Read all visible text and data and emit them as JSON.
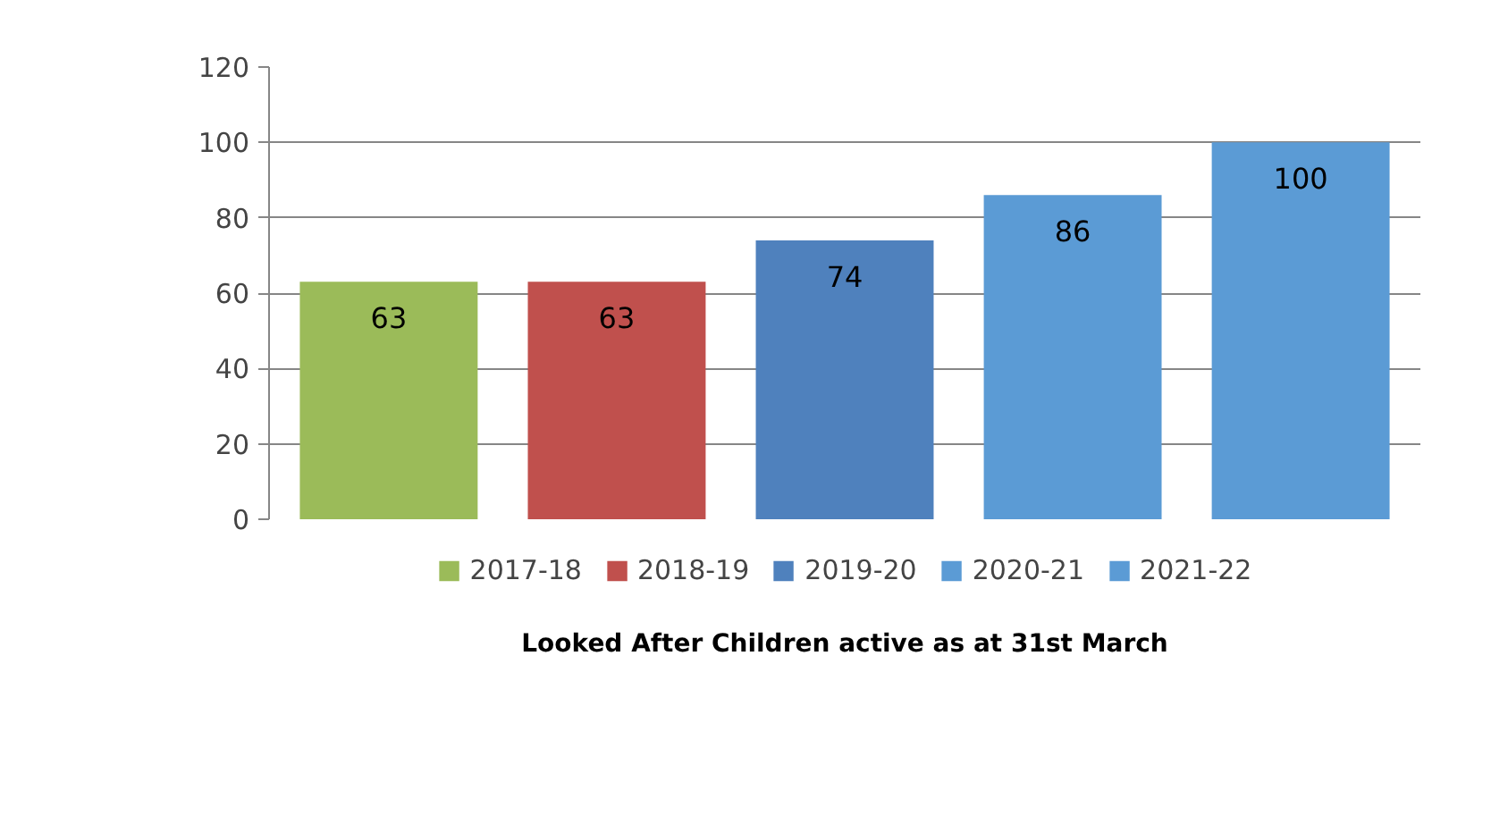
{
  "chart_data": {
    "type": "bar",
    "xlabel": "Looked After Children active as at 31st March",
    "categories": [
      null
    ],
    "series": [
      {
        "name": "2017-18",
        "color": "#9bbb59",
        "values": [
          63
        ]
      },
      {
        "name": "2018-19",
        "color": "#c0504d",
        "values": [
          63
        ]
      },
      {
        "name": "2019-20",
        "color": "#4f81bd",
        "values": [
          74
        ]
      },
      {
        "name": "2020-21",
        "color": "#5b9bd5",
        "values": [
          86
        ]
      },
      {
        "name": "2021-22",
        "color": "#5b9bd5",
        "values": [
          100
        ]
      }
    ],
    "ylim": [
      0,
      120
    ],
    "yticks": [
      0,
      20,
      40,
      60,
      80,
      100,
      120
    ],
    "grid": "y",
    "legend": "bottom",
    "data_labels": true
  }
}
